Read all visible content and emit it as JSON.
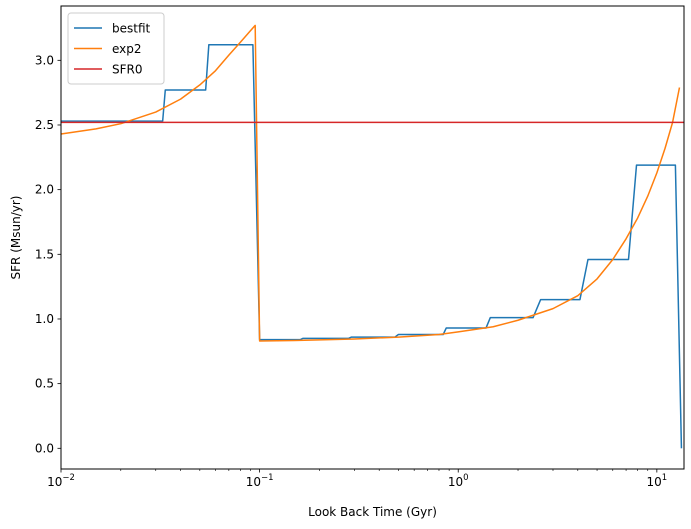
{
  "chart_data": {
    "type": "line",
    "title": "",
    "xlabel": "Look Back Time (Gyr)",
    "ylabel": "SFR (Msun/yr)",
    "xscale": "log",
    "xlim": [
      0.01,
      13.7
    ],
    "ylim": [
      -0.16,
      3.42
    ],
    "grid": false,
    "legend_position": "top-left",
    "x_ticks": [
      {
        "value": 0.01,
        "base": "10",
        "exp": "−2"
      },
      {
        "value": 0.1,
        "base": "10",
        "exp": "−1"
      },
      {
        "value": 1,
        "base": "10",
        "exp": "0"
      },
      {
        "value": 10,
        "base": "10",
        "exp": "1"
      }
    ],
    "y_ticks": [
      "0.0",
      "0.5",
      "1.0",
      "1.5",
      "2.0",
      "2.5",
      "3.0"
    ],
    "series": [
      {
        "name": "bestfit",
        "color": "#1f77b4",
        "x": [
          0.01,
          0.0325,
          0.0335,
          0.0535,
          0.0555,
          0.0925,
          0.1,
          0.16,
          0.165,
          0.28,
          0.29,
          0.48,
          0.5,
          0.84,
          0.87,
          1.38,
          1.45,
          2.38,
          2.6,
          4.1,
          4.5,
          7.2,
          7.9,
          12.4,
          13.3
        ],
        "values": [
          2.53,
          2.53,
          2.77,
          2.77,
          3.12,
          3.12,
          0.84,
          0.84,
          0.85,
          0.85,
          0.86,
          0.86,
          0.88,
          0.88,
          0.93,
          0.93,
          1.01,
          1.01,
          1.15,
          1.15,
          1.46,
          1.46,
          2.19,
          2.19,
          0.0
        ]
      },
      {
        "name": "exp2",
        "color": "#ff7f0e",
        "x": [
          0.01,
          0.015,
          0.02,
          0.03,
          0.04,
          0.05,
          0.06,
          0.07,
          0.08,
          0.09,
          0.095,
          0.1,
          0.15,
          0.2,
          0.3,
          0.5,
          0.8,
          1.0,
          1.5,
          2.0,
          3.0,
          4.0,
          5.0,
          6.0,
          7.0,
          8.0,
          9.0,
          10.0,
          11.0,
          12.0,
          13.0
        ],
        "values": [
          2.43,
          2.47,
          2.51,
          2.6,
          2.7,
          2.81,
          2.92,
          3.04,
          3.14,
          3.23,
          3.27,
          0.83,
          0.834,
          0.838,
          0.845,
          0.86,
          0.88,
          0.9,
          0.94,
          0.99,
          1.08,
          1.18,
          1.31,
          1.46,
          1.62,
          1.78,
          1.95,
          2.13,
          2.32,
          2.52,
          2.79
        ]
      },
      {
        "name": "SFR0",
        "color": "#d62728",
        "x": [
          0.01,
          13.7
        ],
        "values": [
          2.52,
          2.52
        ]
      }
    ]
  }
}
